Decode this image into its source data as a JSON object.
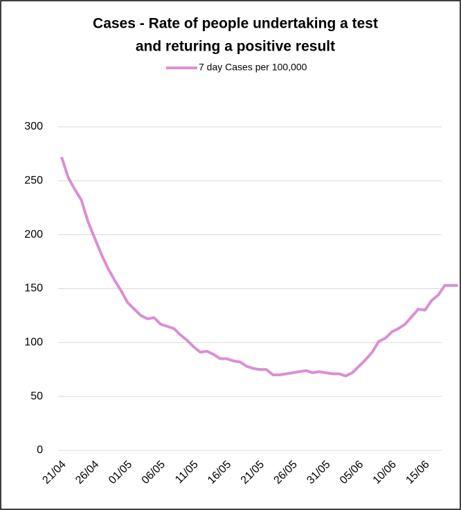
{
  "chart_data": {
    "type": "line",
    "title": [
      "Cases - Rate of people undertaking a test",
      "and returing a positive result"
    ],
    "categories": [
      "21/04",
      null,
      null,
      null,
      null,
      "26/04",
      null,
      null,
      null,
      null,
      "01/05",
      null,
      null,
      null,
      null,
      "06/05",
      null,
      null,
      null,
      null,
      "11/05",
      null,
      null,
      null,
      null,
      "16/05",
      null,
      null,
      null,
      null,
      "21/05",
      null,
      null,
      null,
      null,
      "26/05",
      null,
      null,
      null,
      null,
      "31/05",
      null,
      null,
      null,
      null,
      "05/06",
      null,
      null,
      null,
      null,
      "10/06",
      null,
      null,
      null,
      null,
      "15/06",
      null,
      null,
      null,
      null,
      null
    ],
    "series": [
      {
        "name": "7 day Cases per 100,000",
        "color": "#da8fd3",
        "values": [
          272,
          253,
          242,
          232,
          212,
          197,
          182,
          169,
          158,
          148,
          137,
          131,
          125,
          122,
          123,
          117,
          115,
          113,
          107,
          102,
          96,
          91,
          92,
          89,
          85,
          85,
          83,
          82,
          78,
          76,
          75,
          75,
          70,
          70,
          71,
          72,
          73,
          74,
          72,
          73,
          72,
          71,
          71,
          69,
          72,
          78,
          84,
          91,
          101,
          104,
          110,
          113,
          117,
          124,
          131,
          130,
          139,
          144,
          153,
          153,
          153
        ]
      }
    ],
    "ylim": [
      0,
      300
    ],
    "yticks": [
      0,
      50,
      100,
      150,
      200,
      250,
      300
    ],
    "grid": true,
    "legend": "top"
  }
}
